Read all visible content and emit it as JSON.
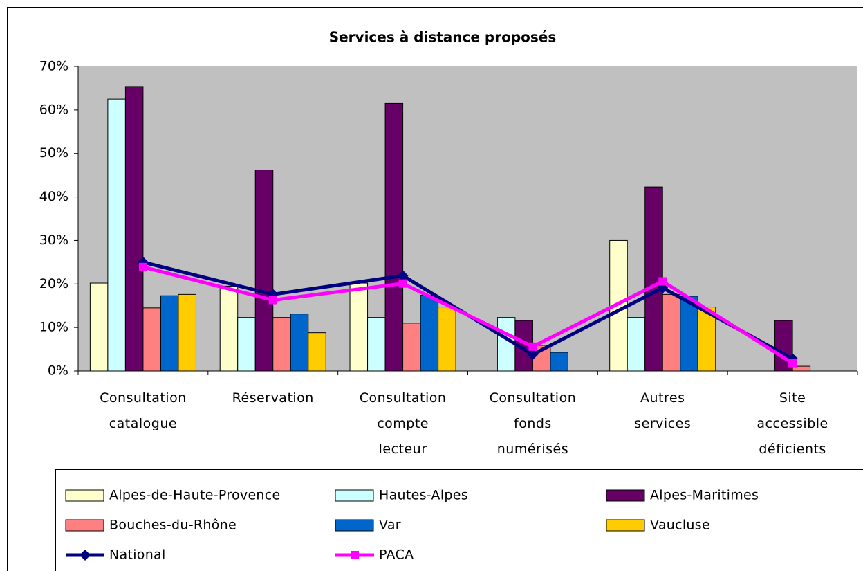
{
  "chart_data": {
    "type": "bar",
    "title": "Services à distance proposés",
    "categories": [
      "Consultation catalogue",
      "Réservation",
      "Consultation compte lecteur",
      "Consultation fonds numérisés",
      "Autres services",
      "Site accessible déficients visuels"
    ],
    "series": [
      {
        "name": "Alpes-de-Haute-Provence",
        "color": "#ffffcc",
        "values": [
          20.2,
          19.5,
          20.2,
          0,
          30,
          0
        ]
      },
      {
        "name": "Hautes-Alpes",
        "color": "#ccffff",
        "values": [
          62.5,
          12.3,
          12.3,
          12.3,
          12.3,
          0
        ]
      },
      {
        "name": "Alpes-Maritimes",
        "color": "#660066",
        "values": [
          65.4,
          46.2,
          61.5,
          11.6,
          42.3,
          11.6
        ]
      },
      {
        "name": "Bouches-du-Rhône",
        "color": "#ff8080",
        "values": [
          14.5,
          12.3,
          11,
          5.9,
          17.6,
          1.1
        ]
      },
      {
        "name": "Var",
        "color": "#0066cc",
        "values": [
          17.3,
          13.1,
          17.4,
          4.3,
          17.2,
          0
        ]
      },
      {
        "name": "Vaucluse",
        "color": "#ffcc00",
        "values": [
          17.6,
          8.8,
          14.7,
          0,
          14.7,
          0
        ]
      },
      {
        "name": "National",
        "color": "#000080",
        "type": "line",
        "marker": "diamond",
        "values": [
          25,
          17.6,
          21.9,
          3.8,
          19.1,
          2.8
        ]
      },
      {
        "name": "PACA",
        "color": "#ff00ff",
        "type": "line",
        "marker": "square",
        "values": [
          23.9,
          16.3,
          20.1,
          5.6,
          20.6,
          1.8
        ]
      }
    ],
    "ylim": [
      0,
      70
    ],
    "yticks": [
      {
        "value": 0,
        "label": "0%"
      },
      {
        "value": 10,
        "label": "10%"
      },
      {
        "value": 20,
        "label": "20%"
      },
      {
        "value": 30,
        "label": "30%"
      },
      {
        "value": 40,
        "label": "40%"
      },
      {
        "value": 50,
        "label": "50%"
      },
      {
        "value": 60,
        "label": "60%"
      },
      {
        "value": 70,
        "label": "70%"
      }
    ],
    "grid": false,
    "plot_background": "#c0c0c0",
    "legend": "bottom"
  }
}
